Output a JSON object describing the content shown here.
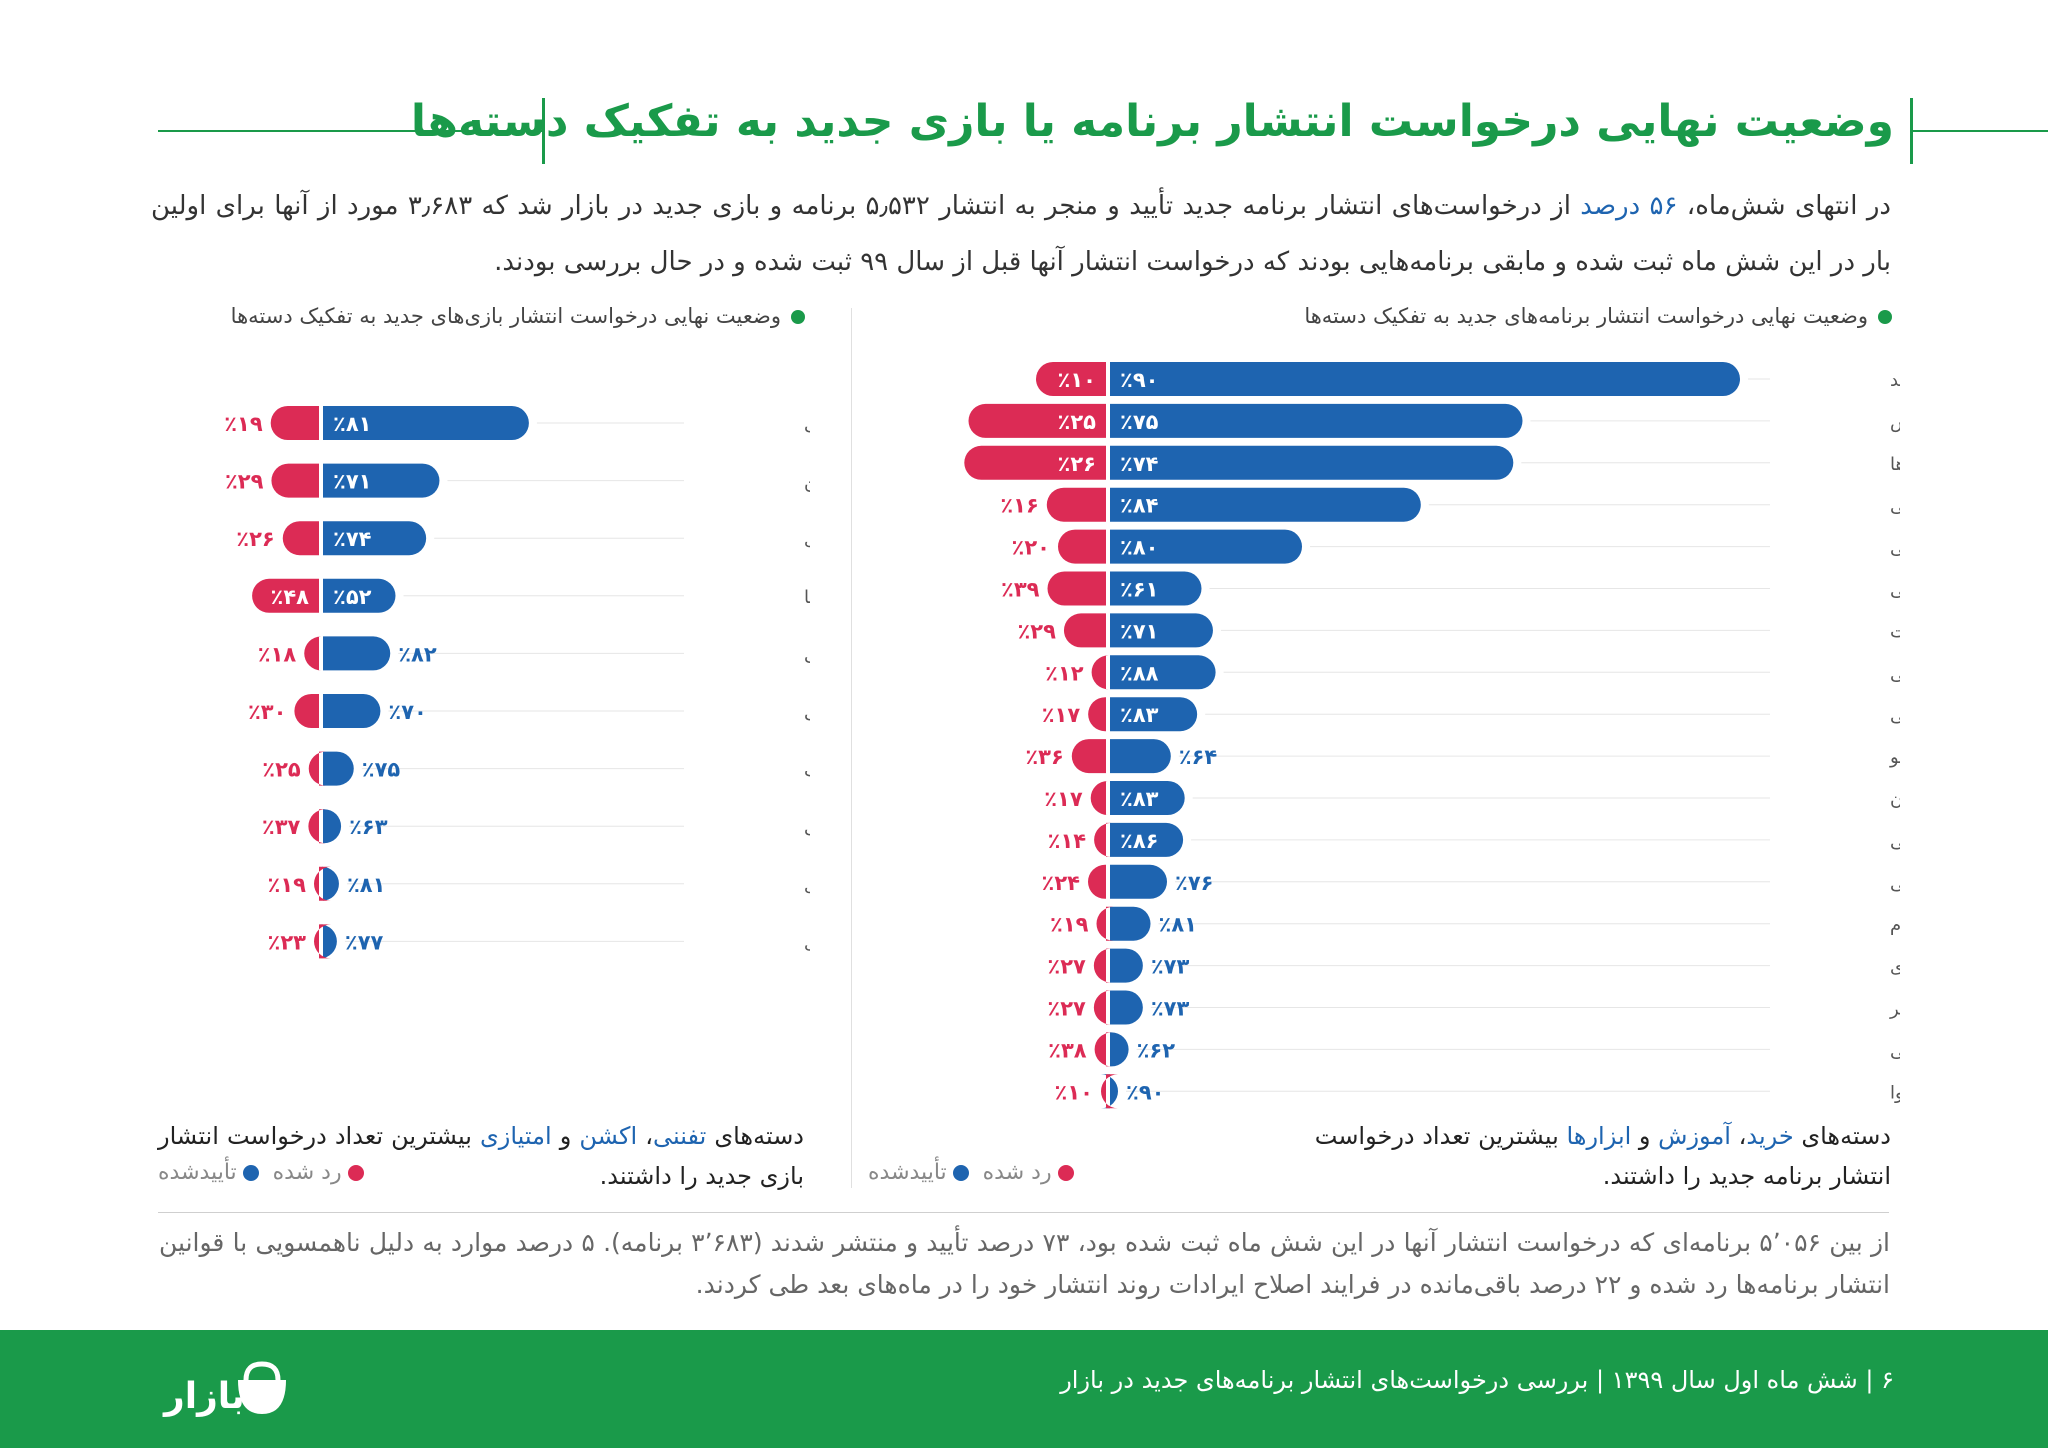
{
  "title": "وضعیت نهایی درخواست انتشار برنامه یا بازی جدید به تفکیک دسته‌ها",
  "intro": {
    "part1": "در انتهای شش‌ماه، ",
    "highlight": "۵۶ درصد",
    "part2": " از درخواست‌های انتشار برنامه جدید تأیید و منجر به انتشار ۵٫۵۳۲ برنامه و بازی جدید در بازار شد که ۳٫۶۸۳ مورد از آنها برای اولین بار در این شش ماه ثبت شده و مابقی برنامه‌هایی بودند که درخواست انتشار آنها قبل از سال ۹۹ ثبت شده و در حال بررسی بودند."
  },
  "apps_section": {
    "title": "وضعیت نهایی درخواست انتشار برنامه‌های جدید به تفکیک دسته‌ها",
    "summary_pre": "دسته‌های ",
    "highlight1": "خرید",
    "sep1": "، ",
    "highlight2": "آموزش",
    "sep2": " و ",
    "highlight3": "ابزارها",
    "summary_post": " بیشترین تعداد درخواست انتشار برنامه جدید را داشتند."
  },
  "games_section": {
    "title": "وضعیت نهایی درخواست انتشار بازی‌های جدید به تفکیک دسته‌ها",
    "summary_pre": "دسته‌های ",
    "highlight1": "تفننی",
    "sep1": "، ",
    "highlight2": "اکشن",
    "sep2": " و ",
    "highlight3": "امتیازی",
    "summary_post": " بیشترین تعداد درخواست انتشار بازی جدید را داشتند."
  },
  "legend": {
    "approved": "تأییدشده",
    "rejected": "رد شده"
  },
  "colors": {
    "approved": "#1e64b0",
    "rejected": "#dc2b55",
    "green": "#1a9a4a"
  },
  "bottom_text": "از بین ۵٬۰۵۶ برنامه‌ای که درخواست انتشار آنها در این شش ماه ثبت شده بود، ۷۳ درصد  تأیید و منتشر شدند (۳٬۶۸۳ برنامه). ۵ درصد موارد به دلیل ناهمسویی با قوانین انتشار برنامه‌ها رد شده و ۲۲ درصد باقی‌مانده در فرایند اصلاح ایرادات روند انتشار خود را در ماه‌های بعد طی کردند.",
  "footer": {
    "text": "۶  |  شش ماه اول سال ۱۳۹۹  |  بررسی درخواست‌های انتشار برنامه‌های جدید در بازار",
    "logo": "بازار"
  },
  "chart_data": [
    {
      "type": "bar",
      "title": "وضعیت نهایی درخواست انتشار برنامه‌های جدید به تفکیک دسته‌ها",
      "categories": [
        "خرید",
        "آموزش",
        "ابزارها",
        "مذهبی",
        "شبکه‌های اجتماعی",
        "سرگرمی",
        "کتاب‌ها و مطبوعات",
        "امورمالی",
        "پزشکی",
        "عکاسی و ویدیو",
        "آشپزی و رستوران",
        "سبک زندگی",
        "موسیقی",
        "تناسب اندام",
        "شخصی‌سازی",
        "سفر",
        "ورزشی",
        "آب‌وهوا"
      ],
      "series": [
        {
          "name": "تأییدشده",
          "values": [
            90,
            75,
            74,
            84,
            80,
            61,
            71,
            88,
            83,
            64,
            83,
            86,
            76,
            81,
            73,
            73,
            62,
            90
          ],
          "labels": [
            "٪۹۰",
            "٪۷۵",
            "٪۷۴",
            "٪۸۴",
            "٪۸۰",
            "٪۶۱",
            "٪۷۱",
            "٪۸۸",
            "٪۸۳",
            "٪۶۴",
            "٪۸۳",
            "٪۸۶",
            "٪۷۶",
            "٪۸۱",
            "٪۷۳",
            "٪۷۳",
            "٪۶۲",
            "٪۹۰"
          ]
        },
        {
          "name": "رد شده",
          "values": [
            10,
            25,
            26,
            16,
            20,
            39,
            29,
            12,
            17,
            36,
            17,
            14,
            24,
            19,
            27,
            27,
            38,
            10
          ],
          "labels": [
            "٪۱۰",
            "٪۲۵",
            "٪۲۶",
            "٪۱۶",
            "٪۲۰",
            "٪۳۹",
            "٪۲۹",
            "٪۱۲",
            "٪۱۷",
            "٪۳۶",
            "٪۱۷",
            "٪۱۴",
            "٪۲۴",
            "٪۱۹",
            "٪۲۷",
            "٪۲۷",
            "٪۳۸",
            "٪۱۰"
          ]
        }
      ],
      "relative_volume": [
        700,
        550,
        545,
        370,
        240,
        150,
        145,
        120,
        105,
        95,
        90,
        85,
        75,
        50,
        45,
        45,
        30,
        8
      ]
    },
    {
      "type": "bar",
      "title": "وضعیت نهایی درخواست انتشار بازی‌های جدید به تفکیک دسته‌ها",
      "categories": [
        "تفننی",
        "اکشن",
        "امتیازی",
        "کلمات و دانستنی‌ها",
        "رانندگی",
        "معمایی",
        "کودک",
        "ورزشی",
        "استراتژی",
        "شبیه‌سازی"
      ],
      "series": [
        {
          "name": "تأییدشده",
          "values": [
            81,
            71,
            74,
            52,
            82,
            70,
            75,
            63,
            81,
            77
          ],
          "labels": [
            "٪۸۱",
            "٪۷۱",
            "٪۷۴",
            "٪۵۲",
            "٪۸۲",
            "٪۷۰",
            "٪۷۵",
            "٪۶۳",
            "٪۸۱",
            "٪۷۷"
          ]
        },
        {
          "name": "رد شده",
          "values": [
            19,
            29,
            26,
            48,
            18,
            30,
            25,
            37,
            19,
            23
          ],
          "labels": [
            "٪۱۹",
            "٪۲۹",
            "٪۲۶",
            "٪۴۸",
            "٪۱۸",
            "٪۳۰",
            "٪۲۵",
            "٪۳۷",
            "٪۱۹",
            "٪۲۳"
          ]
        }
      ],
      "relative_volume": [
        310,
        200,
        170,
        170,
        100,
        100,
        50,
        35,
        24,
        22
      ]
    }
  ]
}
